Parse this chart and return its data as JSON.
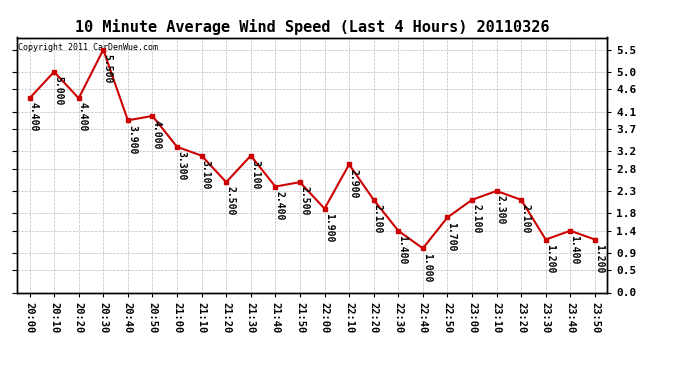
{
  "title": "10 Minute Average Wind Speed (Last 4 Hours) 20110326",
  "copyright": "Copyright 2011 CarDenWue.com",
  "x_labels": [
    "20:00",
    "20:10",
    "20:20",
    "20:30",
    "20:40",
    "20:50",
    "21:00",
    "21:10",
    "21:20",
    "21:30",
    "21:40",
    "21:50",
    "22:00",
    "22:10",
    "22:20",
    "22:30",
    "22:40",
    "22:50",
    "23:00",
    "23:10",
    "23:20",
    "23:30",
    "23:40",
    "23:50"
  ],
  "y_values": [
    4.4,
    5.0,
    4.4,
    5.5,
    3.9,
    4.0,
    3.3,
    3.1,
    2.5,
    3.1,
    2.4,
    2.5,
    1.9,
    2.9,
    2.1,
    1.4,
    1.0,
    1.7,
    2.1,
    2.3,
    2.1,
    1.2,
    1.4,
    1.2
  ],
  "line_color": "#cc0000",
  "marker_color": "#cc0000",
  "background_color": "#ffffff",
  "grid_color": "#bbbbbb",
  "ylim": [
    0.0,
    5.777
  ],
  "yticks_right": [
    0.0,
    0.5,
    0.9,
    1.4,
    1.8,
    2.3,
    2.8,
    3.2,
    3.7,
    4.1,
    4.6,
    5.0,
    5.5
  ],
  "title_fontsize": 11,
  "label_fontsize": 7.5,
  "annotation_fontsize": 7,
  "tick_fontsize": 8
}
